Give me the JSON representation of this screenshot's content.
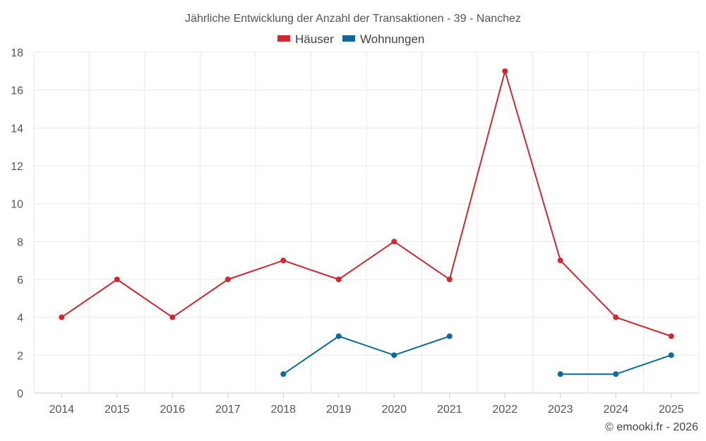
{
  "chart_data": {
    "type": "line",
    "title": "Jährliche Entwicklung der Anzahl der Transaktionen - 39 - Nanchez",
    "categories": [
      "2014",
      "2015",
      "2016",
      "2017",
      "2018",
      "2019",
      "2020",
      "2021",
      "2022",
      "2023",
      "2024",
      "2025"
    ],
    "series": [
      {
        "name": "Häuser",
        "color": "#d0282e",
        "values": [
          4,
          6,
          4,
          6,
          7,
          6,
          8,
          6,
          17,
          7,
          4,
          3
        ]
      },
      {
        "name": "Wohnungen",
        "color": "#0a6aa0",
        "values": [
          null,
          null,
          null,
          null,
          1,
          3,
          2,
          3,
          null,
          1,
          1,
          2
        ]
      }
    ],
    "ylim": [
      0,
      18
    ],
    "yticks": [
      0,
      2,
      4,
      6,
      8,
      10,
      12,
      14,
      16,
      18
    ],
    "xlabel": "",
    "ylabel": "",
    "grid": true,
    "legend": "top-center"
  },
  "credit": "© emooki.fr - 2026"
}
